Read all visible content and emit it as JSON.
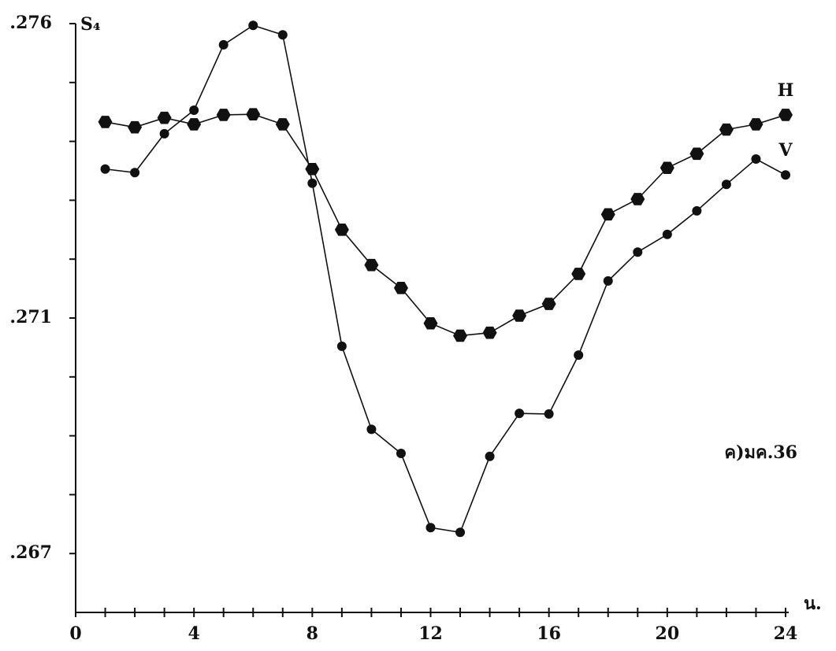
{
  "chart_data": {
    "type": "line",
    "y_label": "S₄",
    "x_label": "น.",
    "annotation": "ค)มค.36",
    "x": [
      1,
      2,
      3,
      4,
      5,
      6,
      7,
      8,
      9,
      10,
      11,
      12,
      13,
      14,
      15,
      16,
      17,
      18,
      19,
      20,
      21,
      22,
      23,
      24
    ],
    "series": [
      {
        "name": "H",
        "color": "#111111",
        "marker": "hexagon",
        "values": [
          0.27433,
          0.27424,
          0.2744,
          0.27429,
          0.27445,
          0.27446,
          0.27429,
          0.27353,
          0.2725,
          0.2719,
          0.27151,
          0.27091,
          0.2707,
          0.27075,
          0.27104,
          0.27124,
          0.27175,
          0.27276,
          0.27302,
          0.27355,
          0.27379,
          0.2742,
          0.27429,
          0.27445
        ]
      },
      {
        "name": "V",
        "color": "#111111",
        "marker": "circle",
        "values": [
          0.27353,
          0.27347,
          0.27413,
          0.27453,
          0.27564,
          0.27597,
          0.27581,
          0.27329,
          0.27052,
          0.26911,
          0.2687,
          0.26744,
          0.26736,
          0.26865,
          0.26938,
          0.26937,
          0.27037,
          0.27163,
          0.27212,
          0.27242,
          0.27282,
          0.27327,
          0.2737,
          0.27343
        ]
      }
    ],
    "xlim": [
      0,
      24
    ],
    "xticks": [
      0,
      {
        "value": 1,
        "label": null
      },
      {
        "value": 2,
        "label": null
      },
      {
        "value": 3,
        "label": null
      },
      4,
      {
        "value": 5,
        "label": null
      },
      {
        "value": 6,
        "label": null
      },
      {
        "value": 7,
        "label": null
      },
      8,
      {
        "value": 9,
        "label": null
      },
      {
        "value": 10,
        "label": null
      },
      {
        "value": 11,
        "label": null
      },
      12,
      {
        "value": 13,
        "label": null
      },
      {
        "value": 14,
        "label": null
      },
      {
        "value": 15,
        "label": null
      },
      16,
      {
        "value": 17,
        "label": null
      },
      {
        "value": 18,
        "label": null
      },
      {
        "value": 19,
        "label": null
      },
      20,
      {
        "value": 21,
        "label": null
      },
      {
        "value": 22,
        "label": null
      },
      {
        "value": 23,
        "label": null
      },
      24
    ],
    "ylim": [
      0.266,
      0.276
    ],
    "yticks": [
      {
        "value": 0.267,
        "label": ".267"
      },
      {
        "value": 0.268,
        "label": null
      },
      {
        "value": 0.269,
        "label": null
      },
      {
        "value": 0.27,
        "label": null
      },
      {
        "value": 0.271,
        "label": ".271"
      },
      {
        "value": 0.272,
        "label": null
      },
      {
        "value": 0.273,
        "label": null
      },
      {
        "value": 0.274,
        "label": null
      },
      {
        "value": 0.275,
        "label": null
      },
      {
        "value": 0.276,
        "label": ".276"
      }
    ],
    "grid": false
  }
}
